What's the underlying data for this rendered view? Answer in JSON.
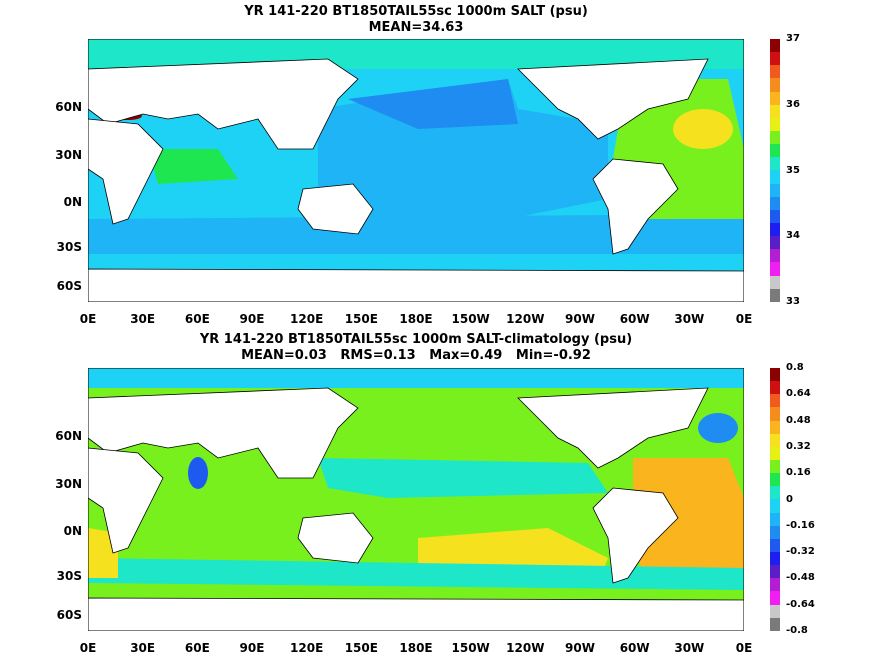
{
  "map1": {
    "title_line1": "YR 141-220 BT1850TAIL55sc 1000m SALT (psu)",
    "title_line2": "MEAN=34.63",
    "colorbar_labels": [
      "37",
      "36",
      "35",
      "34",
      "33"
    ],
    "colorbar_colors": [
      "#8b0000",
      "#d01010",
      "#f05a1e",
      "#f58c1e",
      "#f9b41e",
      "#f5e11e",
      "#e6f014",
      "#78f01e",
      "#1ee650",
      "#1ee6c8",
      "#1ed2f5",
      "#1eb4f5",
      "#1e8cf0",
      "#1e5af0",
      "#1e1ef0",
      "#5a1ec8",
      "#b41ed2",
      "#f01ef0",
      "#c8c8c8",
      "#7a7a7a"
    ]
  },
  "map2": {
    "title_line1": "YR 141-220 BT1850TAIL55sc 1000m SALT-climatology (psu)",
    "title_line2": "MEAN=0.03   RMS=0.13   Max=0.49   Min=-0.92",
    "colorbar_labels": [
      "0.8",
      "0.64",
      "0.48",
      "0.32",
      "0.16",
      "0",
      "-0.16",
      "-0.32",
      "-0.48",
      "-0.64",
      "-0.8"
    ],
    "colorbar_colors": [
      "#8b0000",
      "#d01010",
      "#f05a1e",
      "#f58c1e",
      "#f9b41e",
      "#f5e11e",
      "#e6f014",
      "#78f01e",
      "#1ee650",
      "#1ee6c8",
      "#1ed2f5",
      "#1eb4f5",
      "#1e8cf0",
      "#1e5af0",
      "#1e1ef0",
      "#5a1ec8",
      "#b41ed2",
      "#f01ef0",
      "#c8c8c8",
      "#7a7a7a"
    ]
  },
  "axes": {
    "lon_labels": [
      "0E",
      "30E",
      "60E",
      "90E",
      "120E",
      "150E",
      "180E",
      "150W",
      "120W",
      "90W",
      "60W",
      "30W",
      "0E"
    ],
    "lat_labels": [
      "60N",
      "30N",
      "0N",
      "30S",
      "60S"
    ]
  },
  "colors": {
    "land": "#ffffff",
    "coast": "#000000"
  }
}
